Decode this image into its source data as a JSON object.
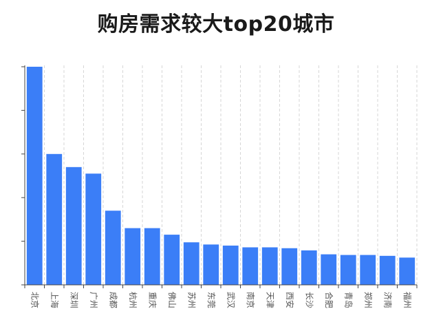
{
  "chart_data": {
    "type": "bar",
    "title": "购房需求较大top20城市",
    "categories": [
      "北京",
      "上海",
      "深圳",
      "广州",
      "成都",
      "杭州",
      "重庆",
      "佛山",
      "苏州",
      "东莞",
      "武汉",
      "南京",
      "天津",
      "西安",
      "长沙",
      "合肥",
      "青岛",
      "郑州",
      "济南",
      "福州"
    ],
    "values": [
      100,
      60,
      54,
      51,
      34,
      26,
      26,
      23,
      19.5,
      18.5,
      18,
      17.2,
      17.2,
      16.8,
      15.8,
      14,
      13.7,
      13.7,
      13.3,
      12.5
    ],
    "ylim": [
      0,
      100
    ],
    "xlabel": "",
    "ylabel": "",
    "grid": "vertical-dashed",
    "bar_color": "#3b7ef7"
  }
}
